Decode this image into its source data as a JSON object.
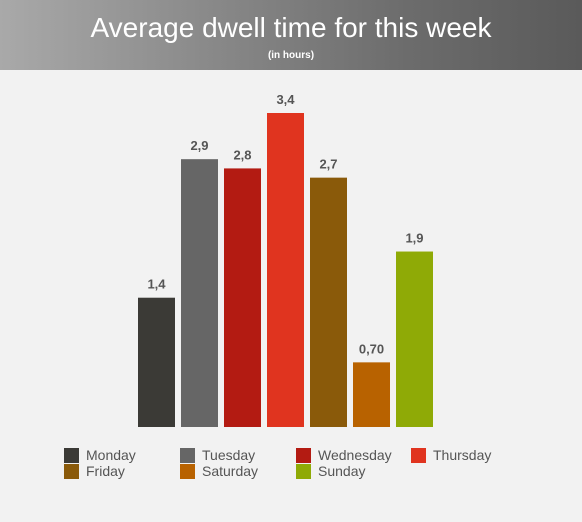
{
  "header": {
    "title": "Average dwell time for this week",
    "subtitle": "(in hours)"
  },
  "chart_data": {
    "type": "bar",
    "title": "Average dwell time for this week",
    "subtitle": "(in hours)",
    "categories": [
      "Monday",
      "Tuesday",
      "Wednesday",
      "Thursday",
      "Friday",
      "Saturday",
      "Sunday"
    ],
    "values": [
      1.4,
      2.9,
      2.8,
      3.4,
      2.7,
      0.7,
      1.9
    ],
    "data_labels": [
      "1,4",
      "2,9",
      "2,8",
      "3,4",
      "2,7",
      "0,70",
      "1,9"
    ],
    "colors": [
      "#3b3a36",
      "#666666",
      "#b31b12",
      "#e0341f",
      "#8a5a0a",
      "#b86200",
      "#8faa06"
    ],
    "ylim": [
      0,
      3.4
    ],
    "grid": false,
    "legend_position": "bottom"
  }
}
